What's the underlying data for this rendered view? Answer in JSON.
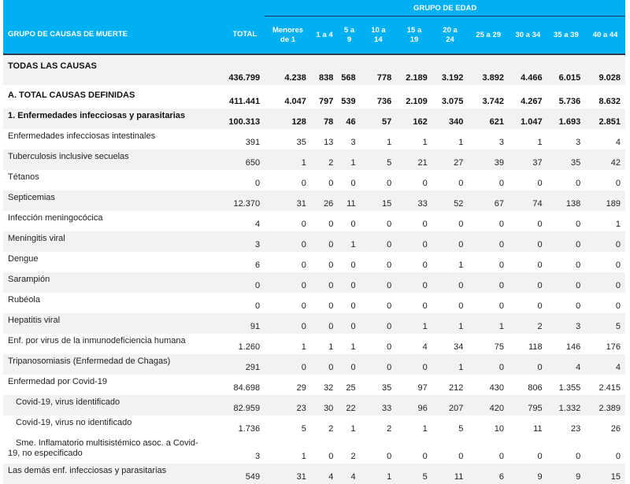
{
  "header": {
    "group_label": "GRUPO DE CAUSAS DE MUERTE",
    "total_label": "TOTAL",
    "age_group_label": "GRUPO DE EDAD",
    "age_columns": [
      {
        "line1": "Menores",
        "line2": "de 1"
      },
      {
        "line1": "1 a 4",
        "line2": ""
      },
      {
        "line1": "5 a",
        "line2": "9"
      },
      {
        "line1": "10 a",
        "line2": "14"
      },
      {
        "line1": "15 a",
        "line2": "19"
      },
      {
        "line1": "20 a",
        "line2": "24"
      },
      {
        "line1": "25 a 29",
        "line2": ""
      },
      {
        "line1": "30 a 34",
        "line2": ""
      },
      {
        "line1": "35 a 39",
        "line2": ""
      },
      {
        "line1": "40 a 44",
        "line2": ""
      }
    ]
  },
  "rows": [
    {
      "label": "TODAS LAS CAUSAS",
      "values": [
        "436.799",
        "4.238",
        "838",
        "568",
        "778",
        "2.189",
        "3.192",
        "3.892",
        "4.466",
        "6.015",
        "9.028"
      ]
    },
    {
      "label": "A. TOTAL CAUSAS DEFINIDAS",
      "values": [
        "411.441",
        "4.047",
        "797",
        "539",
        "736",
        "2.109",
        "3.075",
        "3.742",
        "4.267",
        "5.736",
        "8.632"
      ]
    },
    {
      "label": "1. Enfermedades infecciosas y parasitarias",
      "values": [
        "100.313",
        "128",
        "78",
        "46",
        "57",
        "162",
        "340",
        "621",
        "1.047",
        "1.693",
        "2.851"
      ]
    },
    {
      "label": "Enfermedades infecciosas intestinales",
      "values": [
        "391",
        "35",
        "13",
        "3",
        "1",
        "1",
        "1",
        "3",
        "1",
        "3",
        "4"
      ]
    },
    {
      "label": "Tuberculosis inclusive secuelas",
      "values": [
        "650",
        "1",
        "2",
        "1",
        "5",
        "21",
        "27",
        "39",
        "37",
        "35",
        "42"
      ]
    },
    {
      "label": "Tétanos",
      "values": [
        "0",
        "0",
        "0",
        "0",
        "0",
        "0",
        "0",
        "0",
        "0",
        "0",
        "0"
      ]
    },
    {
      "label": "Septicemias",
      "values": [
        "12.370",
        "31",
        "26",
        "11",
        "15",
        "33",
        "52",
        "67",
        "74",
        "138",
        "189"
      ]
    },
    {
      "label": "Infección meningocócica",
      "values": [
        "4",
        "0",
        "0",
        "0",
        "0",
        "0",
        "0",
        "0",
        "0",
        "0",
        "1"
      ]
    },
    {
      "label": "Meningitis viral",
      "values": [
        "3",
        "0",
        "0",
        "1",
        "0",
        "0",
        "0",
        "0",
        "0",
        "0",
        "0"
      ]
    },
    {
      "label": "Dengue",
      "values": [
        "6",
        "0",
        "0",
        "0",
        "0",
        "0",
        "1",
        "0",
        "0",
        "0",
        "0"
      ]
    },
    {
      "label": "Sarampión",
      "values": [
        "0",
        "0",
        "0",
        "0",
        "0",
        "0",
        "0",
        "0",
        "0",
        "0",
        "0"
      ]
    },
    {
      "label": "Rubéola",
      "values": [
        "0",
        "0",
        "0",
        "0",
        "0",
        "0",
        "0",
        "0",
        "0",
        "0",
        "0"
      ]
    },
    {
      "label": "Hepatitis viral",
      "values": [
        "91",
        "0",
        "0",
        "0",
        "0",
        "1",
        "1",
        "1",
        "2",
        "3",
        "5"
      ]
    },
    {
      "label": "Enf. por virus de la inmunodeficiencia humana",
      "values": [
        "1.260",
        "1",
        "1",
        "1",
        "0",
        "4",
        "34",
        "75",
        "118",
        "146",
        "176"
      ]
    },
    {
      "label": "Tripanosomiasis (Enfermedad de Chagas)",
      "values": [
        "291",
        "0",
        "0",
        "0",
        "0",
        "0",
        "1",
        "0",
        "0",
        "4",
        "4"
      ]
    },
    {
      "label": "Enfermedad por Covid-19",
      "values": [
        "84.698",
        "29",
        "32",
        "25",
        "35",
        "97",
        "212",
        "430",
        "806",
        "1.355",
        "2.415"
      ]
    },
    {
      "label": "Covid-19, virus identificado",
      "values": [
        "82.959",
        "23",
        "30",
        "22",
        "33",
        "96",
        "207",
        "420",
        "795",
        "1.332",
        "2.389"
      ]
    },
    {
      "label": "Covid-19, virus no identificado",
      "values": [
        "1.736",
        "5",
        "2",
        "1",
        "2",
        "1",
        "5",
        "10",
        "11",
        "23",
        "26"
      ]
    },
    {
      "label": "Sme. Inflamatorio multisistémico asoc. a Covid-19, no especificado",
      "label_line1": "Sme. Inflamatorio multisistémico asoc. a Covid-",
      "label_line2": "19, no especificado",
      "values": [
        "3",
        "1",
        "0",
        "2",
        "0",
        "0",
        "0",
        "0",
        "0",
        "0",
        "0"
      ]
    },
    {
      "label": "Las demás enf. infecciosas y parasitarias",
      "values": [
        "549",
        "31",
        "4",
        "4",
        "1",
        "5",
        "11",
        "6",
        "9",
        "9",
        "15"
      ]
    }
  ],
  "colors": {
    "header_bg": "#00b0f0",
    "header_text": "#ffffff",
    "stripe": "#f2f2f2",
    "rule": "#1f3a64"
  }
}
